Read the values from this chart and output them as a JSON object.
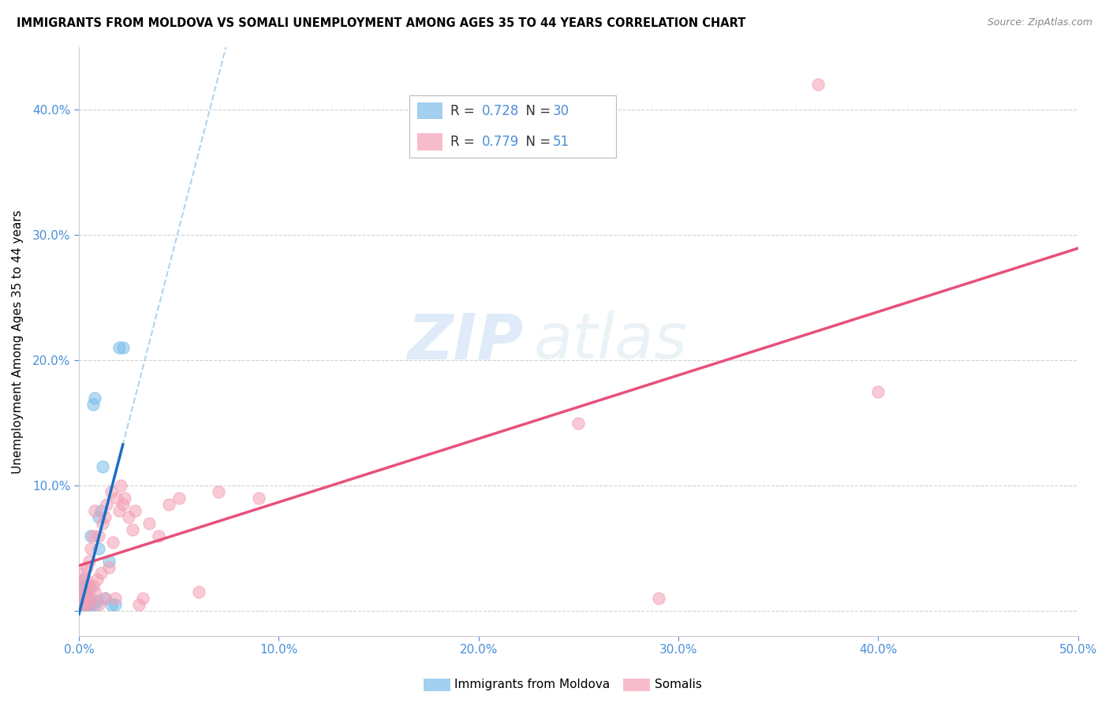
{
  "title": "IMMIGRANTS FROM MOLDOVA VS SOMALI UNEMPLOYMENT AMONG AGES 35 TO 44 YEARS CORRELATION CHART",
  "source": "Source: ZipAtlas.com",
  "ylabel": "Unemployment Among Ages 35 to 44 years",
  "xlim": [
    0.0,
    0.5
  ],
  "ylim": [
    -0.02,
    0.45
  ],
  "xticks": [
    0.0,
    0.1,
    0.2,
    0.3,
    0.4,
    0.5
  ],
  "yticks": [
    0.0,
    0.1,
    0.2,
    0.3,
    0.4
  ],
  "xtick_labels": [
    "0.0%",
    "10.0%",
    "20.0%",
    "30.0%",
    "40.0%",
    "50.0%"
  ],
  "ytick_labels": [
    "",
    "10.0%",
    "20.0%",
    "30.0%",
    "40.0%"
  ],
  "moldova_color": "#7bbde8",
  "somali_color": "#f4a0b5",
  "moldova_line_color": "#1a6fc4",
  "moldova_dash_color": "#9ec9e8",
  "somali_line_color": "#e8507a",
  "moldova_R": "0.728",
  "moldova_N": "30",
  "somali_R": "0.779",
  "somali_N": "51",
  "legend_label_moldova": "Immigrants from Moldova",
  "legend_label_somali": "Somalis",
  "watermark_zip": "ZIP",
  "watermark_atlas": "atlas",
  "background_color": "#ffffff",
  "tick_color": "#4a90d9",
  "moldova_x": [
    0.001,
    0.001,
    0.002,
    0.002,
    0.002,
    0.003,
    0.003,
    0.003,
    0.004,
    0.004,
    0.004,
    0.005,
    0.005,
    0.005,
    0.006,
    0.006,
    0.007,
    0.008,
    0.008,
    0.009,
    0.01,
    0.01,
    0.011,
    0.012,
    0.013,
    0.015,
    0.016,
    0.018,
    0.02,
    0.022
  ],
  "moldova_y": [
    0.005,
    0.015,
    0.005,
    0.01,
    0.025,
    0.005,
    0.01,
    0.02,
    0.005,
    0.01,
    0.015,
    0.005,
    0.008,
    0.018,
    0.005,
    0.06,
    0.165,
    0.17,
    0.005,
    0.008,
    0.05,
    0.075,
    0.08,
    0.115,
    0.01,
    0.04,
    0.005,
    0.005,
    0.21,
    0.21
  ],
  "somali_x": [
    0.001,
    0.001,
    0.002,
    0.002,
    0.003,
    0.003,
    0.003,
    0.004,
    0.004,
    0.005,
    0.005,
    0.005,
    0.006,
    0.006,
    0.007,
    0.007,
    0.008,
    0.008,
    0.009,
    0.01,
    0.01,
    0.011,
    0.012,
    0.013,
    0.013,
    0.014,
    0.015,
    0.016,
    0.017,
    0.018,
    0.019,
    0.02,
    0.021,
    0.022,
    0.023,
    0.025,
    0.027,
    0.028,
    0.03,
    0.032,
    0.035,
    0.04,
    0.045,
    0.05,
    0.06,
    0.07,
    0.09,
    0.25,
    0.29,
    0.37,
    0.4
  ],
  "somali_y": [
    0.005,
    0.02,
    0.01,
    0.03,
    0.005,
    0.015,
    0.025,
    0.01,
    0.035,
    0.005,
    0.02,
    0.04,
    0.01,
    0.05,
    0.02,
    0.06,
    0.015,
    0.08,
    0.025,
    0.005,
    0.06,
    0.03,
    0.07,
    0.01,
    0.075,
    0.085,
    0.035,
    0.095,
    0.055,
    0.01,
    0.09,
    0.08,
    0.1,
    0.085,
    0.09,
    0.075,
    0.065,
    0.08,
    0.005,
    0.01,
    0.07,
    0.06,
    0.085,
    0.09,
    0.015,
    0.095,
    0.09,
    0.15,
    0.01,
    0.42,
    0.175
  ]
}
